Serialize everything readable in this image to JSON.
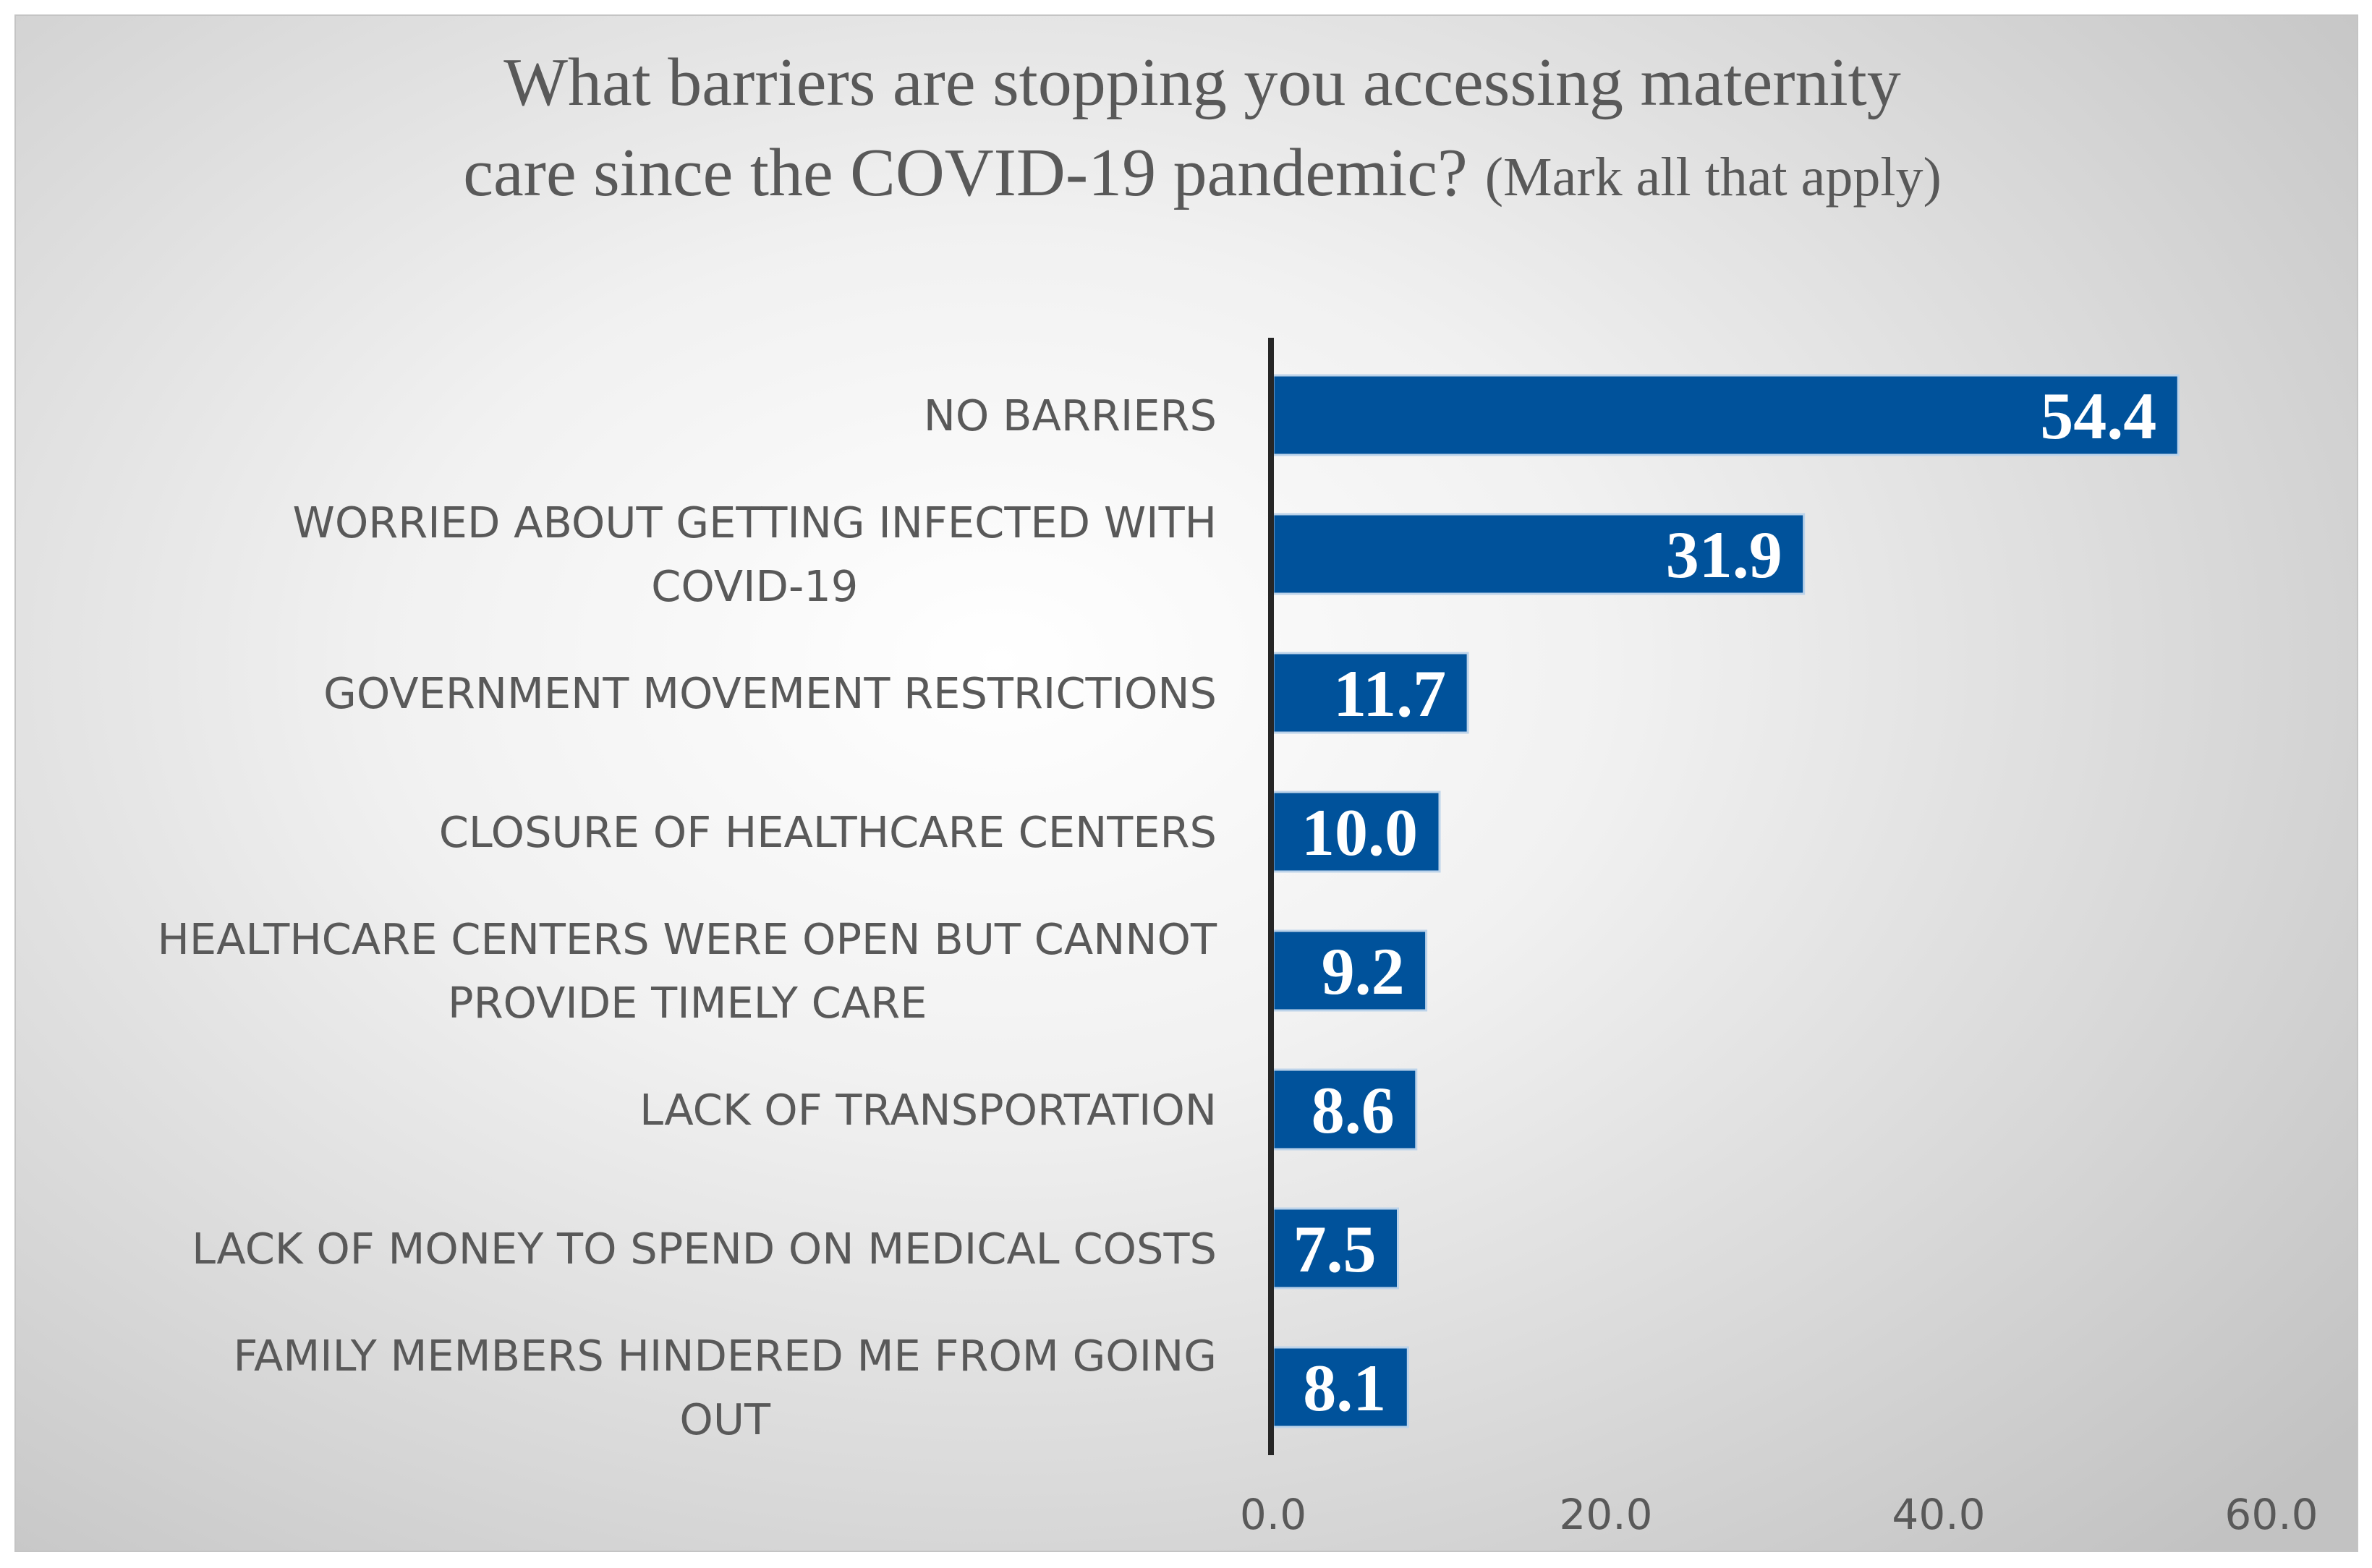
{
  "chart_data": {
    "type": "bar",
    "orientation": "horizontal",
    "title_main_line1": "What barriers are stopping you accessing maternity",
    "title_main_line2": "care since the COVID-19 pandemic?",
    "title_note": "(Mark all that apply)",
    "categories": [
      [
        "NO BARRIERS"
      ],
      [
        "WORRIED ABOUT GETTING INFECTED WITH",
        "COVID-19"
      ],
      [
        "GOVERNMENT MOVEMENT RESTRICTIONS"
      ],
      [
        "CLOSURE OF HEALTHCARE CENTERS"
      ],
      [
        "HEALTHCARE CENTERS WERE OPEN BUT CANNOT",
        "PROVIDE TIMELY CARE"
      ],
      [
        "LACK OF TRANSPORTATION"
      ],
      [
        "LACK OF MONEY TO SPEND ON MEDICAL COSTS"
      ],
      [
        "FAMILY MEMBERS HINDERED ME FROM GOING",
        "OUT"
      ]
    ],
    "values": [
      54.4,
      31.9,
      11.7,
      10.0,
      9.2,
      8.6,
      7.5,
      8.1
    ],
    "data_labels": [
      "54.4",
      "31.9",
      "11.7",
      "10.0",
      "9.2",
      "8.6",
      "7.5",
      "8.1"
    ],
    "xlim": [
      0,
      60
    ],
    "x_ticks": [
      "0.0",
      "20.0",
      "40.0",
      "60.0"
    ],
    "x_tick_values": [
      0,
      20,
      40,
      60
    ],
    "xlabel": "",
    "ylabel": "",
    "grid": false,
    "legend": "none",
    "bar_color": "#00529b",
    "bar_edge_color": "#bcd3ea",
    "axis_color": "#262626",
    "text_color": "#595959"
  }
}
